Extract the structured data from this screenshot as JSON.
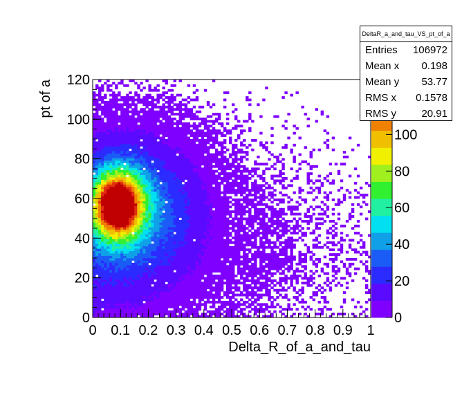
{
  "chart_data": {
    "type": "heatmap",
    "title": "",
    "xlabel": "Delta_R_of_a_and_tau",
    "ylabel": "pt of a",
    "xlim": [
      0,
      1
    ],
    "ylim": [
      0,
      120
    ],
    "zlim": [
      0,
      130
    ],
    "x_ticks": [
      "0",
      "0.1",
      "0.2",
      "0.3",
      "0.4",
      "0.5",
      "0.6",
      "0.7",
      "0.8",
      "0.9",
      "1"
    ],
    "y_ticks": [
      "0",
      "20",
      "40",
      "60",
      "80",
      "100",
      "120"
    ],
    "z_ticks": [
      "0",
      "20",
      "40",
      "60",
      "80",
      "100",
      "120"
    ],
    "bins": {
      "nx": 100,
      "ny": 100
    },
    "density_peak": {
      "x": 0.09,
      "y": 57,
      "z": 125
    },
    "colormap": [
      "#8000ff",
      "#5a0bff",
      "#2c2bff",
      "#1a5cf5",
      "#10a0e8",
      "#00e0f0",
      "#20f0a0",
      "#30f030",
      "#a0f020",
      "#f0f000",
      "#f0c000",
      "#f08000",
      "#e03010",
      "#c00000"
    ],
    "stats": {
      "name": "DeltaR_a_and_tau_VS_pt_of_a",
      "rows": [
        {
          "key": "Entries",
          "value": "106972"
        },
        {
          "key": "Mean x",
          "value": "0.198"
        },
        {
          "key": "Mean y",
          "value": "53.77"
        },
        {
          "key": "RMS x",
          "value": "0.1578"
        },
        {
          "key": "RMS y",
          "value": "20.91"
        }
      ]
    }
  }
}
